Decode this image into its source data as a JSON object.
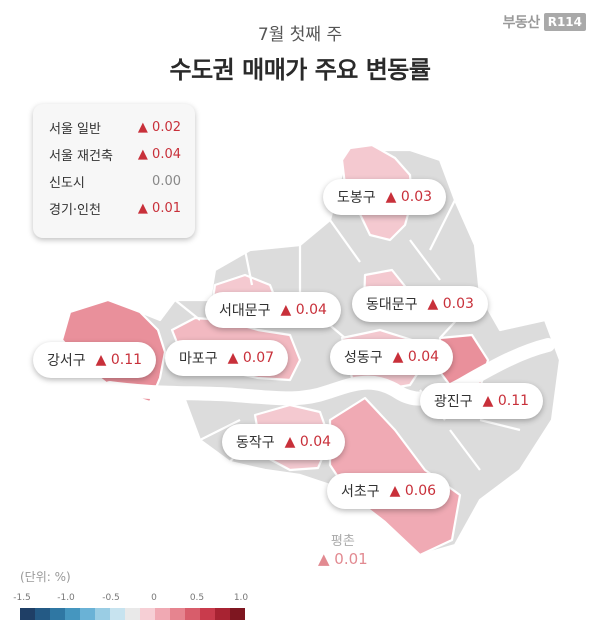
{
  "brand": {
    "text": "부동산",
    "box": "R114"
  },
  "header": {
    "subtitle": "7월 첫째 주",
    "title": "수도권 매매가 주요 변동률"
  },
  "summary": [
    {
      "label": "서울 일반",
      "value": "▲ 0.02"
    },
    {
      "label": "서울 재건축",
      "value": "▲ 0.04"
    },
    {
      "label": "신도시",
      "value": "0.00"
    },
    {
      "label": "경기·인천",
      "value": "▲ 0.01"
    }
  ],
  "districts": [
    {
      "name": "도봉구",
      "value": "▲ 0.03",
      "change": 0.03
    },
    {
      "name": "서대문구",
      "value": "▲ 0.04",
      "change": 0.04
    },
    {
      "name": "동대문구",
      "value": "▲ 0.03",
      "change": 0.03
    },
    {
      "name": "강서구",
      "value": "▲ 0.11",
      "change": 0.11
    },
    {
      "name": "마포구",
      "value": "▲ 0.07",
      "change": 0.07
    },
    {
      "name": "성동구",
      "value": "▲ 0.04",
      "change": 0.04
    },
    {
      "name": "광진구",
      "value": "▲ 0.11",
      "change": 0.11
    },
    {
      "name": "동작구",
      "value": "▲ 0.04",
      "change": 0.04
    },
    {
      "name": "서초구",
      "value": "▲ 0.06",
      "change": 0.06
    }
  ],
  "pyeongchon": {
    "name": "평촌",
    "value": "▲ 0.01"
  },
  "legend": {
    "unit": "(단위: %)",
    "ticks": [
      "-1.5",
      "-1.0",
      "-0.5",
      "0",
      "0.5",
      "1.0"
    ],
    "colors": [
      "#1f3f66",
      "#245a85",
      "#2f77a3",
      "#4596bf",
      "#6ab2d6",
      "#9acde4",
      "#c7e3ef",
      "#e9e9e9",
      "#f6cfd5",
      "#f0a9b3",
      "#e6848f",
      "#d85d6b",
      "#c93b4c",
      "#a82332",
      "#7e1620"
    ]
  },
  "colors": {
    "up": "#c8303a",
    "neutral": "#888888",
    "map_base": "#dcdcdc",
    "river": "#ffffff"
  }
}
